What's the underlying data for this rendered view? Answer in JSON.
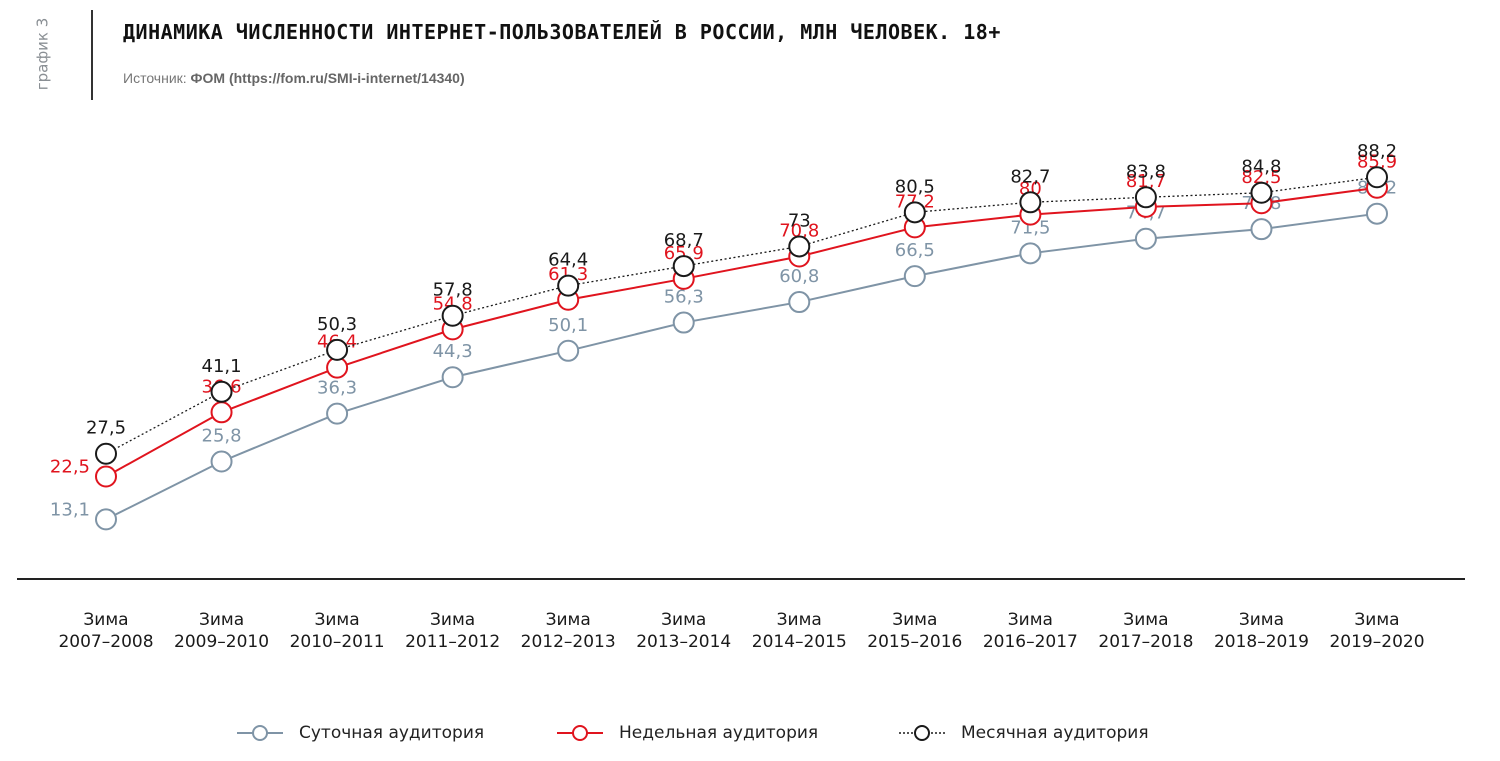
{
  "header": {
    "side_label": "график 3",
    "title": "ДИНАМИКА ЧИСЛЕННОСТИ ИНТЕРНЕТ-ПОЛЬЗОВАТЕЛЕЙ В РОССИИ, МЛН ЧЕЛОВЕК. 18+",
    "source_prefix": "Источник: ",
    "source_text": "ФОМ (https://fom.ru/SMI-i-internet/14340)"
  },
  "colors": {
    "daily": "#7f94a6",
    "weekly": "#e0141e",
    "monthly": "#1a1a1a",
    "axis": "#222222"
  },
  "chart_data": {
    "type": "line",
    "title": "ДИНАМИКА ЧИСЛЕННОСТИ ИНТЕРНЕТ-ПОЛЬЗОВАТЕЛЕЙ В РОССИИ, МЛН ЧЕЛОВЕК. 18+",
    "xlabel": "",
    "ylabel": "",
    "ylim": [
      0,
      95
    ],
    "categories": [
      [
        "Зима",
        "2007–2008"
      ],
      [
        "Зима",
        "2009–2010"
      ],
      [
        "Зима",
        "2010–2011"
      ],
      [
        "Зима",
        "2011–2012"
      ],
      [
        "Зима",
        "2012–2013"
      ],
      [
        "Зима",
        "2013–2014"
      ],
      [
        "Зима",
        "2014–2015"
      ],
      [
        "Зима",
        "2015–2016"
      ],
      [
        "Зима",
        "2016–2017"
      ],
      [
        "Зима",
        "2017–2018"
      ],
      [
        "Зима",
        "2018–2019"
      ],
      [
        "Зима",
        "2019–2020"
      ]
    ],
    "series": [
      {
        "key": "daily",
        "name": "Суточная аудитория",
        "values": [
          13.1,
          25.8,
          36.3,
          44.3,
          50.1,
          56.3,
          60.8,
          66.5,
          71.5,
          74.7,
          76.8,
          80.2
        ],
        "labels": [
          "13,1",
          "25,8",
          "36,3",
          "44,3",
          "50,1",
          "56,3",
          "60,8",
          "66,5",
          "71,5",
          "74,7",
          "76,8",
          "80,2"
        ]
      },
      {
        "key": "weekly",
        "name": "Недельная аудитория",
        "values": [
          22.5,
          36.6,
          46.4,
          54.8,
          61.3,
          65.9,
          70.8,
          77.2,
          80,
          81.7,
          82.5,
          85.9
        ],
        "labels": [
          "22,5",
          "36,6",
          "46,4",
          "54,8",
          "61,3",
          "65,9",
          "70,8",
          "77,2",
          "80",
          "81,7",
          "82,5",
          "85,9"
        ]
      },
      {
        "key": "monthly",
        "name": "Месячная аудитория",
        "values": [
          27.5,
          41.1,
          50.3,
          57.8,
          64.4,
          68.7,
          73,
          80.5,
          82.7,
          83.8,
          84.8,
          88.2
        ],
        "labels": [
          "27,5",
          "41,1",
          "50,3",
          "57,8",
          "64,4",
          "68,7",
          "73",
          "80,5",
          "82,7",
          "83,8",
          "84,8",
          "88,2"
        ]
      }
    ]
  }
}
